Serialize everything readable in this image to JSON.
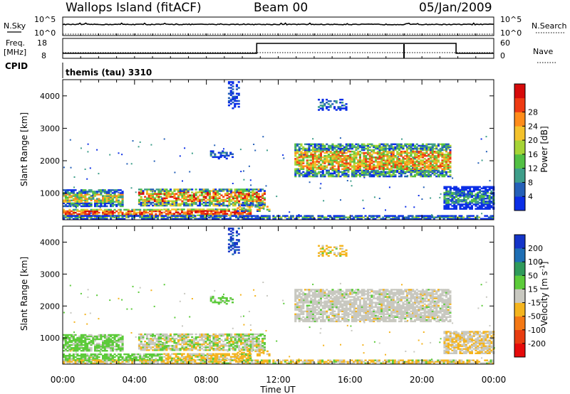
{
  "header": {
    "station": "Wallops Island (fitACF)",
    "beam": "Beam 00",
    "date": "05/Jan/2009"
  },
  "labels": {
    "nsky": "N.Sky",
    "nsearch": "N.Search",
    "freq": "Freq.",
    "mhz": "[MHz]",
    "nave": "Nave",
    "cpid": "CPID",
    "cpid_value": "themis (tau) 3310",
    "ylabel": "Slant Range [km]",
    "xlabel": "Time UT",
    "power_label": "Power [dB]",
    "velocity_label": "Velocity [m s",
    "velocity_exp": "-1",
    "velocity_close": "]",
    "log_hi": "10^5",
    "log_lo": "10^0",
    "freq_hi": "18",
    "freq_lo": "8",
    "nave_hi": "60",
    "nave_lo": "0"
  },
  "chart_data": [
    {
      "type": "line",
      "panel": "noise",
      "series": [
        {
          "name": "N.Sky",
          "x": [
            0,
            24
          ],
          "y": [
            1000,
            1000
          ]
        },
        {
          "name": "N.Search",
          "x": [
            0,
            24
          ],
          "y": [
            1,
            1
          ]
        }
      ],
      "ylim": [
        1,
        100000
      ],
      "scale": "log"
    },
    {
      "type": "line",
      "panel": "frequency",
      "series": [
        {
          "name": "Freq.",
          "x": [
            0,
            10.8,
            10.8,
            21.9,
            21.9,
            24
          ],
          "y": [
            10.5,
            10.5,
            15.5,
            15.5,
            10.5,
            10.5
          ]
        },
        {
          "name": "Nave",
          "x": [
            0,
            24
          ],
          "y": [
            15,
            15
          ]
        }
      ],
      "ylim_freq": [
        8,
        18
      ],
      "ylim_nave": [
        0,
        60
      ]
    },
    {
      "type": "heatmap",
      "panel": "power",
      "xlim": [
        0,
        24
      ],
      "ylim": [
        180,
        4500
      ],
      "xticks": [
        "00:00",
        "04:00",
        "08:00",
        "12:00",
        "16:00",
        "20:00",
        "00:00"
      ],
      "yticks": [
        1000,
        2000,
        3000,
        4000
      ],
      "colorbar_ticks": [
        "4",
        "8",
        "12",
        "16",
        "20",
        "24",
        "28"
      ],
      "colorbar_colors": [
        "#0b2ee6",
        "#2560b8",
        "#3e9e8a",
        "#52c044",
        "#a6d436",
        "#f4c22c",
        "#ff8c1a",
        "#ee3a12",
        "#d60a0a"
      ]
    },
    {
      "type": "heatmap",
      "panel": "velocity",
      "xlim": [
        0,
        24
      ],
      "ylim": [
        180,
        4500
      ],
      "xticks": [
        "00:00",
        "04:00",
        "08:00",
        "12:00",
        "16:00",
        "20:00",
        "00:00"
      ],
      "yticks": [
        1000,
        2000,
        3000,
        4000
      ],
      "colorbar_ticks": [
        "200",
        "100",
        "50",
        "15",
        "-15",
        "-50",
        "-100",
        "-200"
      ],
      "colorbar_colors": [
        "#1434c8",
        "#1e6eb4",
        "#2f9a5a",
        "#5ccb3a",
        "#c8c8c0",
        "#f4b41e",
        "#f47814",
        "#e83c10",
        "#e60a0a"
      ]
    }
  ]
}
